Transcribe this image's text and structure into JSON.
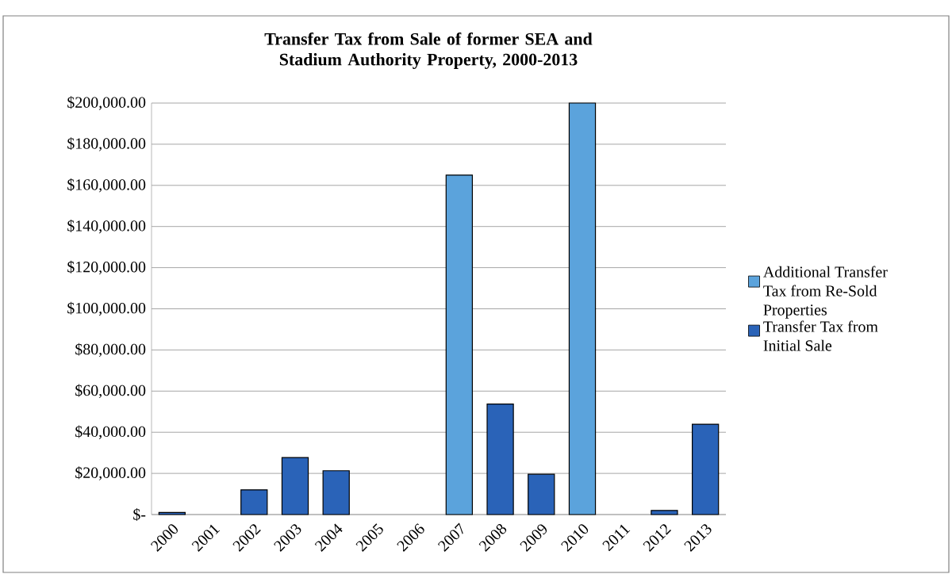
{
  "chart_data": {
    "type": "bar",
    "stacked": true,
    "title": "Transfer Tax from Sale of former SEA and Stadium Authority Property, 2000-2013",
    "categories": [
      "2000",
      "2001",
      "2002",
      "2003",
      "2004",
      "2005",
      "2006",
      "2007",
      "2008",
      "2009",
      "2010",
      "2011",
      "2012",
      "2013"
    ],
    "series": [
      {
        "name": "Additional Transfer Tax from Re-Sold Properties",
        "color": "#5ba3dc",
        "values": [
          null,
          null,
          null,
          null,
          null,
          null,
          null,
          165000,
          null,
          null,
          200000,
          null,
          null,
          null
        ]
      },
      {
        "name": "Transfer Tax from Initial Sale",
        "color": "#2a63b8",
        "values": [
          1000,
          null,
          12000,
          27700,
          21300,
          null,
          null,
          null,
          53700,
          19600,
          null,
          null,
          2000,
          43900
        ]
      }
    ],
    "ylim": [
      0,
      200000
    ],
    "yticks": [
      {
        "value": 0,
        "label": "$-"
      },
      {
        "value": 20000,
        "label": "$20,000.00"
      },
      {
        "value": 40000,
        "label": "$40,000.00"
      },
      {
        "value": 60000,
        "label": "$60,000.00"
      },
      {
        "value": 80000,
        "label": "$80,000.00"
      },
      {
        "value": 100000,
        "label": "$100,000.00"
      },
      {
        "value": 120000,
        "label": "$120,000.00"
      },
      {
        "value": 140000,
        "label": "$140,000.00"
      },
      {
        "value": 160000,
        "label": "$160,000.00"
      },
      {
        "value": 180000,
        "label": "$180,000.00"
      },
      {
        "value": 200000,
        "label": "$200,000.00"
      }
    ],
    "grid": "y",
    "legend": "right"
  }
}
